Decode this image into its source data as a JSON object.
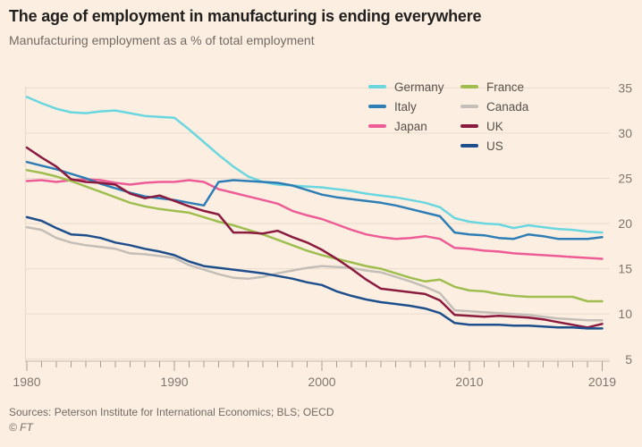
{
  "header": {
    "title": "The age of employment in manufacturing is ending everywhere",
    "subtitle": "Manufacturing employment as a % of total employment"
  },
  "footer": {
    "sources": "Sources: Peterson Institute for International Economics; BLS; OECD",
    "copyright": "© FT"
  },
  "colors": {
    "background": "#FCEFE2",
    "gridline": "#E9DBCB",
    "axis_line": "#D2C5B6",
    "tick": "#A79D92",
    "axis_text": "#7E766E"
  },
  "legend": {
    "columns": [
      [
        "Germany",
        "Italy",
        "Japan"
      ],
      [
        "France",
        "Canada",
        "UK",
        "US"
      ]
    ]
  },
  "chart_data": {
    "type": "line",
    "title": "The age of employment in manufacturing is ending everywhere",
    "subtitle": "Manufacturing employment as a % of total employment",
    "xlabel": "",
    "ylabel": "Manufacturing employment as a % of total employment",
    "ylim": [
      5,
      35
    ],
    "yticks": [
      5,
      10,
      15,
      20,
      25,
      30,
      35
    ],
    "xticks": [
      1980,
      1990,
      2000,
      2010,
      2019
    ],
    "grid": "horizontal",
    "legend_position": "top-right",
    "x": [
      1980,
      1981,
      1982,
      1983,
      1984,
      1985,
      1986,
      1987,
      1988,
      1989,
      1990,
      1991,
      1992,
      1993,
      1994,
      1995,
      1996,
      1997,
      1998,
      1999,
      2000,
      2001,
      2002,
      2003,
      2004,
      2005,
      2006,
      2007,
      2008,
      2009,
      2010,
      2011,
      2012,
      2013,
      2014,
      2015,
      2016,
      2017,
      2018,
      2019
    ],
    "series": [
      {
        "name": "Germany",
        "color": "#6AD6DF",
        "values": [
          34.0,
          33.3,
          32.7,
          32.3,
          32.2,
          32.4,
          32.5,
          32.2,
          31.9,
          31.8,
          31.7,
          30.4,
          29.0,
          27.6,
          26.3,
          25.2,
          24.6,
          24.3,
          24.2,
          24.1,
          24.0,
          23.8,
          23.6,
          23.3,
          23.1,
          22.9,
          22.6,
          22.3,
          21.8,
          20.6,
          20.2,
          20.0,
          19.9,
          19.5,
          19.8,
          19.6,
          19.4,
          19.3,
          19.1,
          19.0
        ]
      },
      {
        "name": "Japan",
        "color": "#EE5C96",
        "values": [
          24.7,
          24.8,
          24.6,
          24.8,
          24.9,
          24.8,
          24.5,
          24.3,
          24.5,
          24.6,
          24.6,
          24.8,
          24.6,
          23.8,
          23.4,
          23.0,
          22.6,
          22.2,
          21.4,
          20.9,
          20.5,
          19.9,
          19.3,
          18.8,
          18.5,
          18.3,
          18.4,
          18.6,
          18.3,
          17.3,
          17.2,
          17.0,
          16.9,
          16.7,
          16.6,
          16.5,
          16.4,
          16.3,
          16.2,
          16.1
        ]
      },
      {
        "name": "Italy",
        "color": "#2E7EB5",
        "values": [
          26.8,
          26.4,
          26.0,
          25.5,
          25.0,
          24.4,
          23.9,
          23.4,
          23.0,
          22.8,
          22.6,
          22.3,
          22.0,
          24.6,
          24.8,
          24.7,
          24.6,
          24.5,
          24.2,
          23.7,
          23.2,
          22.9,
          22.7,
          22.5,
          22.3,
          22.0,
          21.6,
          21.2,
          20.8,
          19.0,
          18.8,
          18.7,
          18.4,
          18.3,
          18.8,
          18.6,
          18.3,
          18.3,
          18.3,
          18.5
        ]
      },
      {
        "name": "France",
        "color": "#9FBE4F",
        "values": [
          25.9,
          25.6,
          25.2,
          24.7,
          24.1,
          23.5,
          22.9,
          22.3,
          21.9,
          21.6,
          21.4,
          21.2,
          20.7,
          20.2,
          19.8,
          19.3,
          18.8,
          18.2,
          17.6,
          17.0,
          16.5,
          16.1,
          15.7,
          15.3,
          15.0,
          14.5,
          14.0,
          13.6,
          13.8,
          13.0,
          12.6,
          12.5,
          12.2,
          12.0,
          11.9,
          11.9,
          11.9,
          11.9,
          11.4,
          11.4
        ]
      },
      {
        "name": "Canada",
        "color": "#C3BEB7",
        "values": [
          19.6,
          19.3,
          18.4,
          17.9,
          17.6,
          17.4,
          17.2,
          16.7,
          16.6,
          16.4,
          16.2,
          15.4,
          14.9,
          14.4,
          14.0,
          13.9,
          14.1,
          14.5,
          14.8,
          15.1,
          15.3,
          15.2,
          15.1,
          14.8,
          14.6,
          14.1,
          13.6,
          13.0,
          12.3,
          10.4,
          10.3,
          10.2,
          10.1,
          10.0,
          9.9,
          9.7,
          9.5,
          9.4,
          9.3,
          9.3
        ]
      },
      {
        "name": "UK",
        "color": "#8B1A3F",
        "values": [
          28.4,
          27.3,
          26.3,
          24.9,
          24.6,
          24.5,
          24.3,
          23.3,
          22.8,
          23.1,
          22.5,
          21.9,
          21.4,
          21.0,
          19.0,
          19.0,
          18.9,
          19.2,
          18.5,
          17.9,
          17.1,
          16.1,
          15.0,
          13.8,
          12.8,
          12.6,
          12.4,
          12.2,
          11.5,
          9.9,
          9.8,
          9.7,
          9.8,
          9.7,
          9.6,
          9.4,
          9.1,
          8.8,
          8.5,
          8.9
        ]
      },
      {
        "name": "US",
        "color": "#1E4F8C",
        "values": [
          20.7,
          20.3,
          19.5,
          18.8,
          18.7,
          18.4,
          17.9,
          17.6,
          17.2,
          16.9,
          16.5,
          15.8,
          15.3,
          15.1,
          14.9,
          14.7,
          14.5,
          14.2,
          13.9,
          13.5,
          13.2,
          12.5,
          12.0,
          11.6,
          11.3,
          11.1,
          10.9,
          10.6,
          10.1,
          9.0,
          8.8,
          8.8,
          8.8,
          8.7,
          8.7,
          8.6,
          8.5,
          8.5,
          8.4,
          8.4
        ]
      }
    ]
  }
}
